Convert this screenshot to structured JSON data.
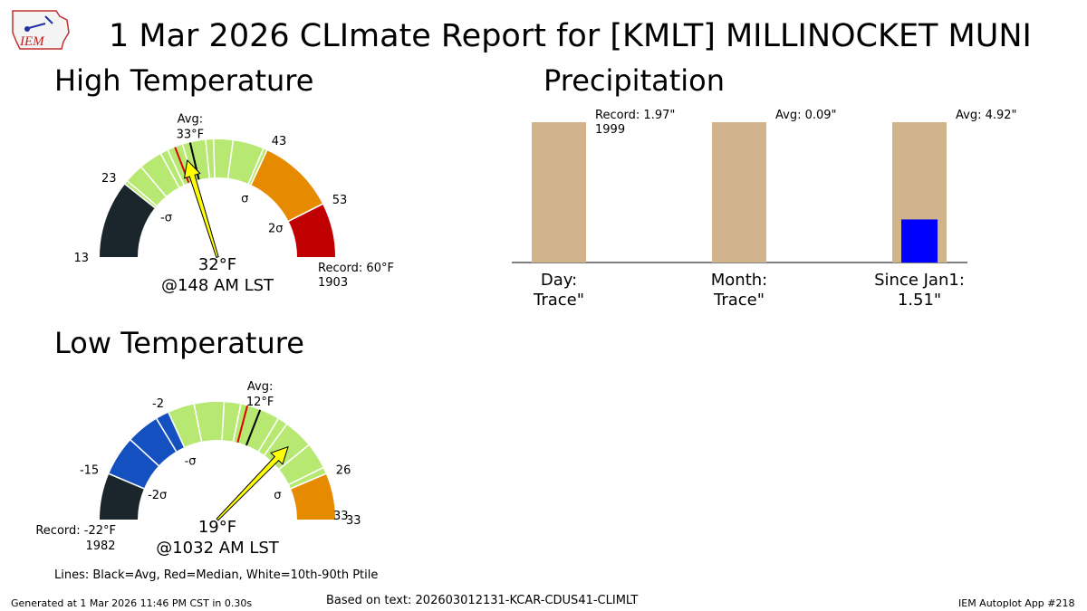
{
  "header": {
    "title": "1 Mar 2026 CLImate Report for [KMLT] MILLINOCKET MUNI",
    "logo_text": "IEM"
  },
  "sections": {
    "high": "High Temperature",
    "low": "Low Temperature",
    "precip": "Precipitation"
  },
  "footer": {
    "lines_note": "Lines: Black=Avg, Red=Median, White=10th-90th Ptile",
    "generated": "Generated at 1 Mar 2026 11:46 PM CST in 0.30s",
    "based_on": "Based on text: 202603012131-KCAR-CDUS41-CLIMLT",
    "app": "IEM Autoplot App #218"
  },
  "colors": {
    "dark": "#1b262c",
    "blue": "#1450c0",
    "green": "#b7e872",
    "orange": "#e68a00",
    "red": "#c00000",
    "tan": "#d2b48c",
    "precip_blue": "#0000ff",
    "needle": "#ffff00"
  },
  "chart_data": [
    {
      "type": "gauge",
      "title": "High Temperature",
      "range": [
        13,
        60
      ],
      "bands": [
        {
          "from": 13,
          "to": 23,
          "color": "dark"
        },
        {
          "from": 23,
          "to": 43,
          "color": "green"
        },
        {
          "from": 43,
          "to": 53,
          "color": "orange"
        },
        {
          "from": 53,
          "to": 60,
          "color": "red"
        }
      ],
      "boundary_labels": [
        "13",
        "23",
        "43",
        "53"
      ],
      "sigma_labels": [
        {
          "value": 23,
          "text": "-σ"
        },
        {
          "value": 43,
          "text": "σ"
        },
        {
          "value": 53,
          "text": "2σ"
        }
      ],
      "avg": 33,
      "avg_label": "Avg:",
      "avg_value_label": "33°F",
      "median": 31,
      "percentile_lines": [
        23.5,
        26,
        29,
        30,
        32,
        35,
        36,
        38.5,
        42.5
      ],
      "observed": 32,
      "observed_label": "32°F",
      "observed_time": "@148 AM LST",
      "record_label": "Record: 60°F",
      "record_year": "1903"
    },
    {
      "type": "gauge",
      "title": "Low Temperature",
      "range": [
        -22,
        33
      ],
      "bands": [
        {
          "from": -22,
          "to": -15,
          "color": "dark"
        },
        {
          "from": -15,
          "to": -2,
          "color": "blue"
        },
        {
          "from": -2,
          "to": 26,
          "color": "green"
        },
        {
          "from": 26,
          "to": 33,
          "color": "orange"
        }
      ],
      "boundary_labels": [
        "-15",
        "-2",
        "26",
        "33"
      ],
      "sigma_labels": [
        {
          "value": -15,
          "text": "-2σ"
        },
        {
          "value": -2,
          "text": "-σ"
        },
        {
          "value": 26,
          "text": "σ"
        }
      ],
      "avg": 12,
      "avg_label": "Avg:",
      "avg_value_label": "12°F",
      "median": 10,
      "percentile_lines": [
        -9,
        -4,
        2,
        6.5,
        9,
        15,
        16.5,
        21,
        25
      ],
      "observed": 19,
      "observed_label": "19°F",
      "observed_time": "@1032 AM LST",
      "record_label": "Record: -22°F",
      "record_year": "1982"
    },
    {
      "type": "bar",
      "title": "Precipitation",
      "categories": [
        "Day:",
        "Month:",
        "Since Jan1:"
      ],
      "value_labels": [
        "Trace\"",
        "Trace\"",
        "1.51\""
      ],
      "series": [
        {
          "values": [
            0,
            0,
            1.51
          ]
        },
        {
          "values": [
            1.97,
            0.09,
            4.92
          ]
        }
      ],
      "annotations": [
        "Record: 1.97\"",
        "Avg: 0.09\"",
        "Avg: 4.92\""
      ],
      "annotation_years": [
        "1999",
        "",
        ""
      ]
    }
  ]
}
